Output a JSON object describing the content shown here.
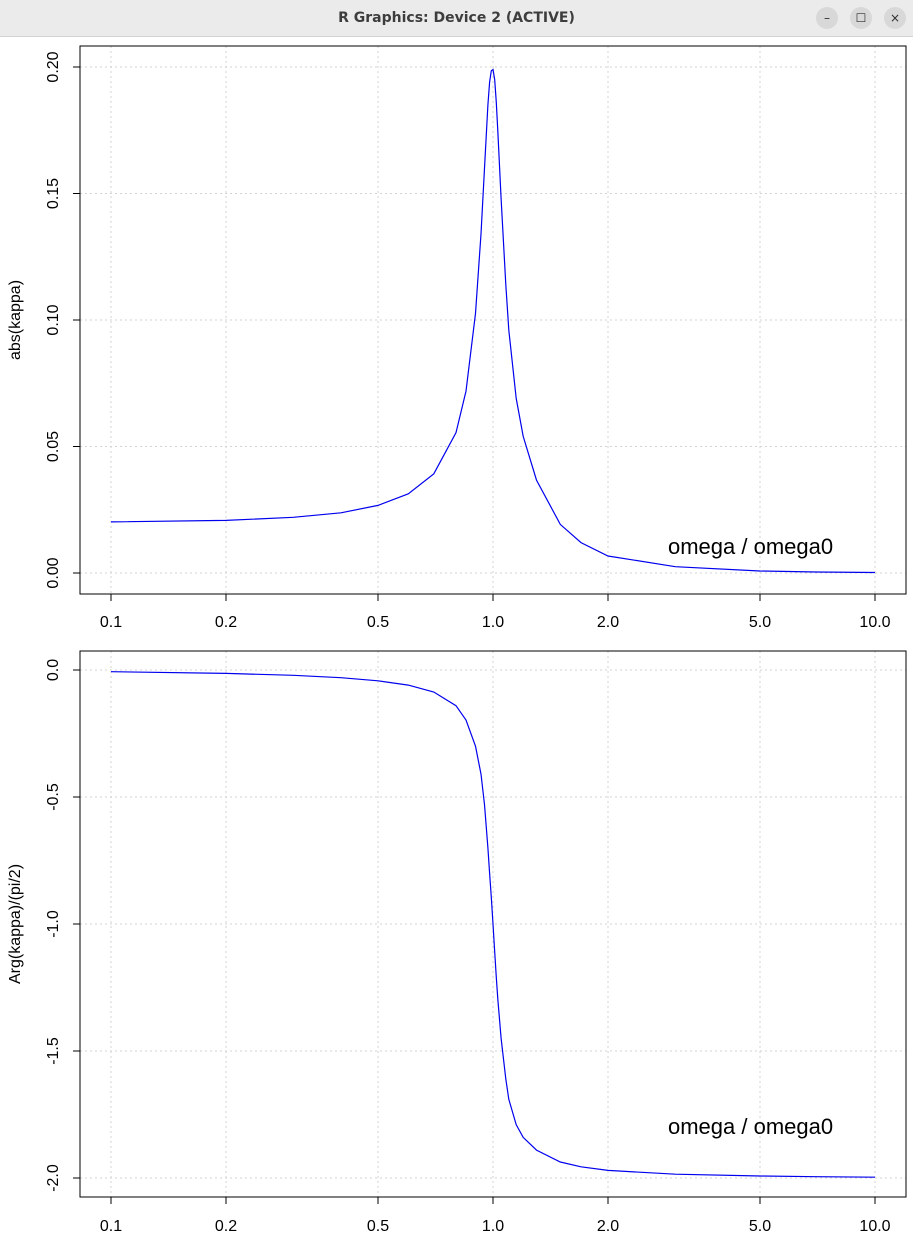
{
  "window": {
    "title": "R Graphics: Device 2 (ACTIVE)",
    "buttons": {
      "minimize": "–",
      "maximize": "☐",
      "close": "×"
    }
  },
  "line_color": "#0000ee",
  "grid_color": "#d3d3d3",
  "chart_data": [
    {
      "type": "line",
      "xscale": "log",
      "grid": true,
      "xlabel": "",
      "ylabel": "abs(kappa)",
      "annotation": "omega / omega0",
      "xlim": [
        0.1,
        10.0
      ],
      "ylim": [
        0.0,
        0.2
      ],
      "xticks": [
        "0.1",
        "0.2",
        "0.5",
        "1.0",
        "2.0",
        "5.0",
        "10.0"
      ],
      "xtick_values": [
        0.1,
        0.2,
        0.5,
        1.0,
        2.0,
        5.0,
        10.0
      ],
      "yticks": [
        "0.00",
        "0.05",
        "0.10",
        "0.15",
        "0.20"
      ],
      "ytick_values": [
        0.0,
        0.05,
        0.1,
        0.15,
        0.2
      ],
      "series": [
        {
          "x": [
            0.1,
            0.2,
            0.3,
            0.4,
            0.5,
            0.6,
            0.7,
            0.8,
            0.85,
            0.9,
            0.93,
            0.95,
            0.97,
            0.98,
            0.99,
            1.0,
            1.01,
            1.02,
            1.03,
            1.05,
            1.08,
            1.1,
            1.15,
            1.2,
            1.3,
            1.5,
            1.7,
            2.0,
            3.0,
            5.0,
            7.0,
            10.0
          ],
          "y": [
            0.0202,
            0.0208,
            0.022,
            0.0238,
            0.0267,
            0.0313,
            0.0392,
            0.0555,
            0.0719,
            0.1026,
            0.134,
            0.16,
            0.185,
            0.194,
            0.1985,
            0.199,
            0.195,
            0.186,
            0.174,
            0.148,
            0.114,
            0.096,
            0.069,
            0.054,
            0.0367,
            0.0192,
            0.012,
            0.0067,
            0.0025,
            0.0008,
            0.0004,
            0.0002
          ]
        }
      ]
    },
    {
      "type": "line",
      "xscale": "log",
      "grid": true,
      "xlabel": "",
      "ylabel": "Arg(kappa)/(pi/2)",
      "annotation": "omega / omega0",
      "xlim": [
        0.1,
        10.0
      ],
      "ylim": [
        -2.0,
        0.0
      ],
      "xticks": [
        "0.1",
        "0.2",
        "0.5",
        "1.0",
        "2.0",
        "5.0",
        "10.0"
      ],
      "xtick_values": [
        0.1,
        0.2,
        0.5,
        1.0,
        2.0,
        5.0,
        10.0
      ],
      "yticks": [
        "-2.0",
        "-1.5",
        "-1.0",
        "-0.5",
        "0.0"
      ],
      "ytick_values": [
        -2.0,
        -1.5,
        -1.0,
        -0.5,
        0.0
      ],
      "series": [
        {
          "x": [
            0.1,
            0.2,
            0.3,
            0.4,
            0.5,
            0.6,
            0.7,
            0.8,
            0.85,
            0.9,
            0.93,
            0.95,
            0.97,
            0.98,
            0.99,
            1.0,
            1.01,
            1.02,
            1.03,
            1.05,
            1.08,
            1.1,
            1.15,
            1.2,
            1.3,
            1.5,
            1.7,
            2.0,
            3.0,
            5.0,
            7.0,
            10.0
          ],
          "y": [
            -0.0065,
            -0.0133,
            -0.021,
            -0.0303,
            -0.0424,
            -0.0596,
            -0.0868,
            -0.1405,
            -0.197,
            -0.3,
            -0.41,
            -0.53,
            -0.7,
            -0.8,
            -0.895,
            -1.0,
            -1.11,
            -1.21,
            -1.3,
            -1.45,
            -1.61,
            -1.69,
            -1.79,
            -1.84,
            -1.89,
            -1.937,
            -1.956,
            -1.97,
            -1.985,
            -1.992,
            -1.995,
            -1.997
          ]
        }
      ]
    }
  ]
}
